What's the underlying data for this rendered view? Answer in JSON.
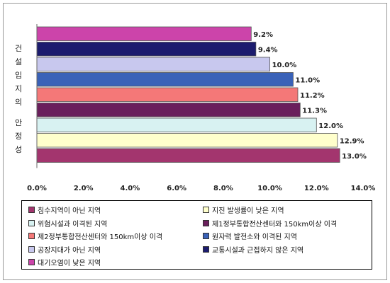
{
  "chart_data": {
    "type": "bar",
    "orientation": "horizontal",
    "ylabel": "건설입지의 안정성",
    "xlim": [
      0,
      14
    ],
    "x_ticks": [
      "0.0%",
      "2.0%",
      "4.0%",
      "6.0%",
      "8.0%",
      "10.0%",
      "12.0%",
      "14.0%"
    ],
    "grid": false,
    "legend_position": "bottom",
    "bars": [
      {
        "name": "대기오염이 낮은 지역",
        "value": 9.2,
        "label": "9.2%",
        "color": "#cc44aa"
      },
      {
        "name": "교통시설과 근접하지 않은 지역",
        "value": 9.4,
        "label": "9.4%",
        "color": "#1c1c6e"
      },
      {
        "name": "공장지대가 아닌 지역",
        "value": 10.0,
        "label": "10.0%",
        "color": "#c8c8ee"
      },
      {
        "name": "원자력 발전소와 이격된 지역",
        "value": 11.0,
        "label": "11.0%",
        "color": "#3a62b8"
      },
      {
        "name": "제2정부통합전산센터와 150km이상 이격",
        "value": 11.2,
        "label": "11.2%",
        "color": "#f47878"
      },
      {
        "name": "제1정부통합전산센터와 150km이상 이격",
        "value": 11.3,
        "label": "11.3%",
        "color": "#6a1f5c"
      },
      {
        "name": "위험시설과 이격된 지역",
        "value": 12.0,
        "label": "12.0%",
        "color": "#d8f2f2"
      },
      {
        "name": "지진 발생률이 낮은 지역",
        "value": 12.9,
        "label": "12.9%",
        "color": "#ffffcc"
      },
      {
        "name": "침수지역이 아닌 지역",
        "value": 13.0,
        "label": "13.0%",
        "color": "#a3356e"
      }
    ],
    "legend": [
      {
        "label": "침수지역이 아닌 지역",
        "color": "#a3356e"
      },
      {
        "label": "지진 발생률이 낮은 지역",
        "color": "#ffffcc"
      },
      {
        "label": "위험시설과 이격된 지역",
        "color": "#d8f2f2"
      },
      {
        "label": "제1정부통합전산센터와 150km이상 이격",
        "color": "#6a1f5c"
      },
      {
        "label": "제2정부통합전산센터와 150km이상 이격",
        "color": "#f47878"
      },
      {
        "label": "원자력 발전소와 이격된 지역",
        "color": "#3a62b8"
      },
      {
        "label": "공장지대가 아닌 지역",
        "color": "#c8c8ee"
      },
      {
        "label": "교통시설과 근접하지 않은 지역",
        "color": "#1c1c6e"
      },
      {
        "label": "대기오염이 낮은 지역",
        "color": "#cc44aa"
      }
    ]
  }
}
